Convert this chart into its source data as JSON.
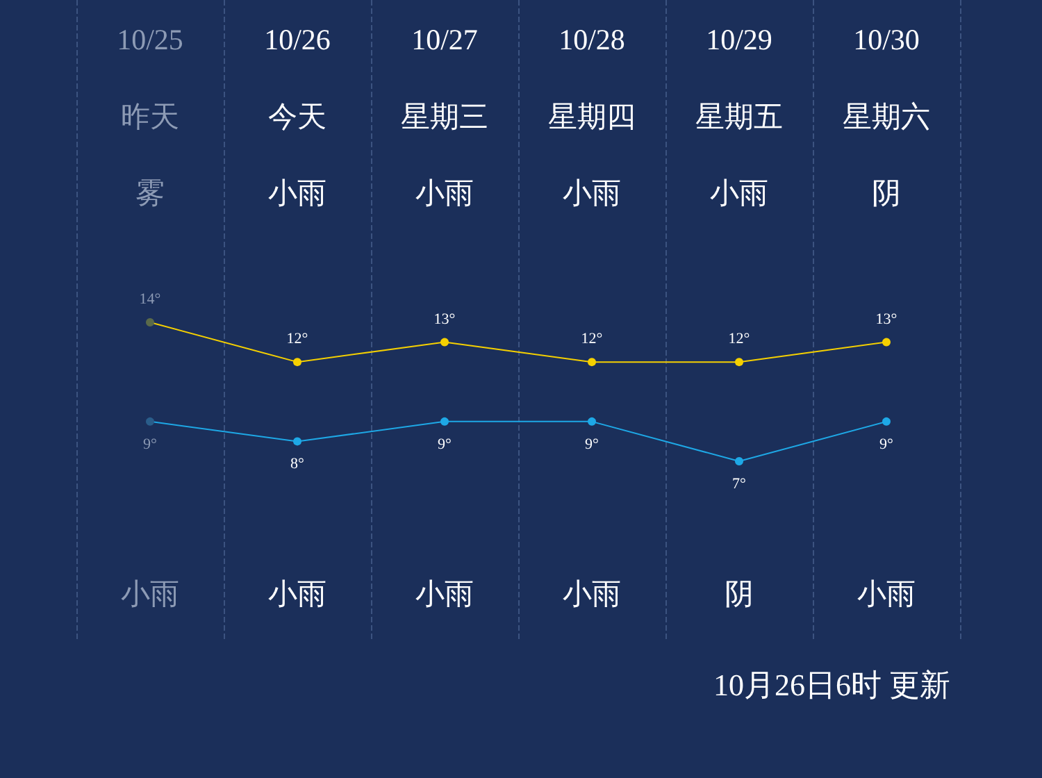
{
  "chart_data": {
    "type": "line",
    "categories": [
      "10/25",
      "10/26",
      "10/27",
      "10/28",
      "10/29",
      "10/30"
    ],
    "series": [
      {
        "color": "#f5d000",
        "colors": [
          "#5a6a4a",
          "#f5d000",
          "#f5d000",
          "#f5d000",
          "#f5d000",
          "#f5d000"
        ],
        "values": [
          14,
          12,
          13,
          12,
          12,
          13
        ],
        "value_labels": [
          "14°",
          "12°",
          "13°",
          "12°",
          "12°",
          "13°"
        ]
      },
      {
        "color": "#1ea8e6",
        "colors": [
          "#2a5d8a",
          "#1ea8e6",
          "#1ea8e6",
          "#1ea8e6",
          "#1ea8e6",
          "#1ea8e6"
        ],
        "values": [
          9,
          8,
          9,
          9,
          7,
          9
        ],
        "value_labels": [
          "9°",
          "8°",
          "9°",
          "9°",
          "7°",
          "9°"
        ]
      }
    ],
    "annotations": [
      "昨天",
      "今天",
      "星期三",
      "星期四",
      "星期五",
      "星期六",
      "雾",
      "小雨",
      "小雨",
      "小雨",
      "小雨",
      "阴",
      "小雨",
      "小雨",
      "小雨",
      "小雨",
      "阴",
      "小雨",
      "10月26日6时 更新"
    ],
    "grid": "x",
    "line_style": "solid",
    "marker": "circle"
  }
}
